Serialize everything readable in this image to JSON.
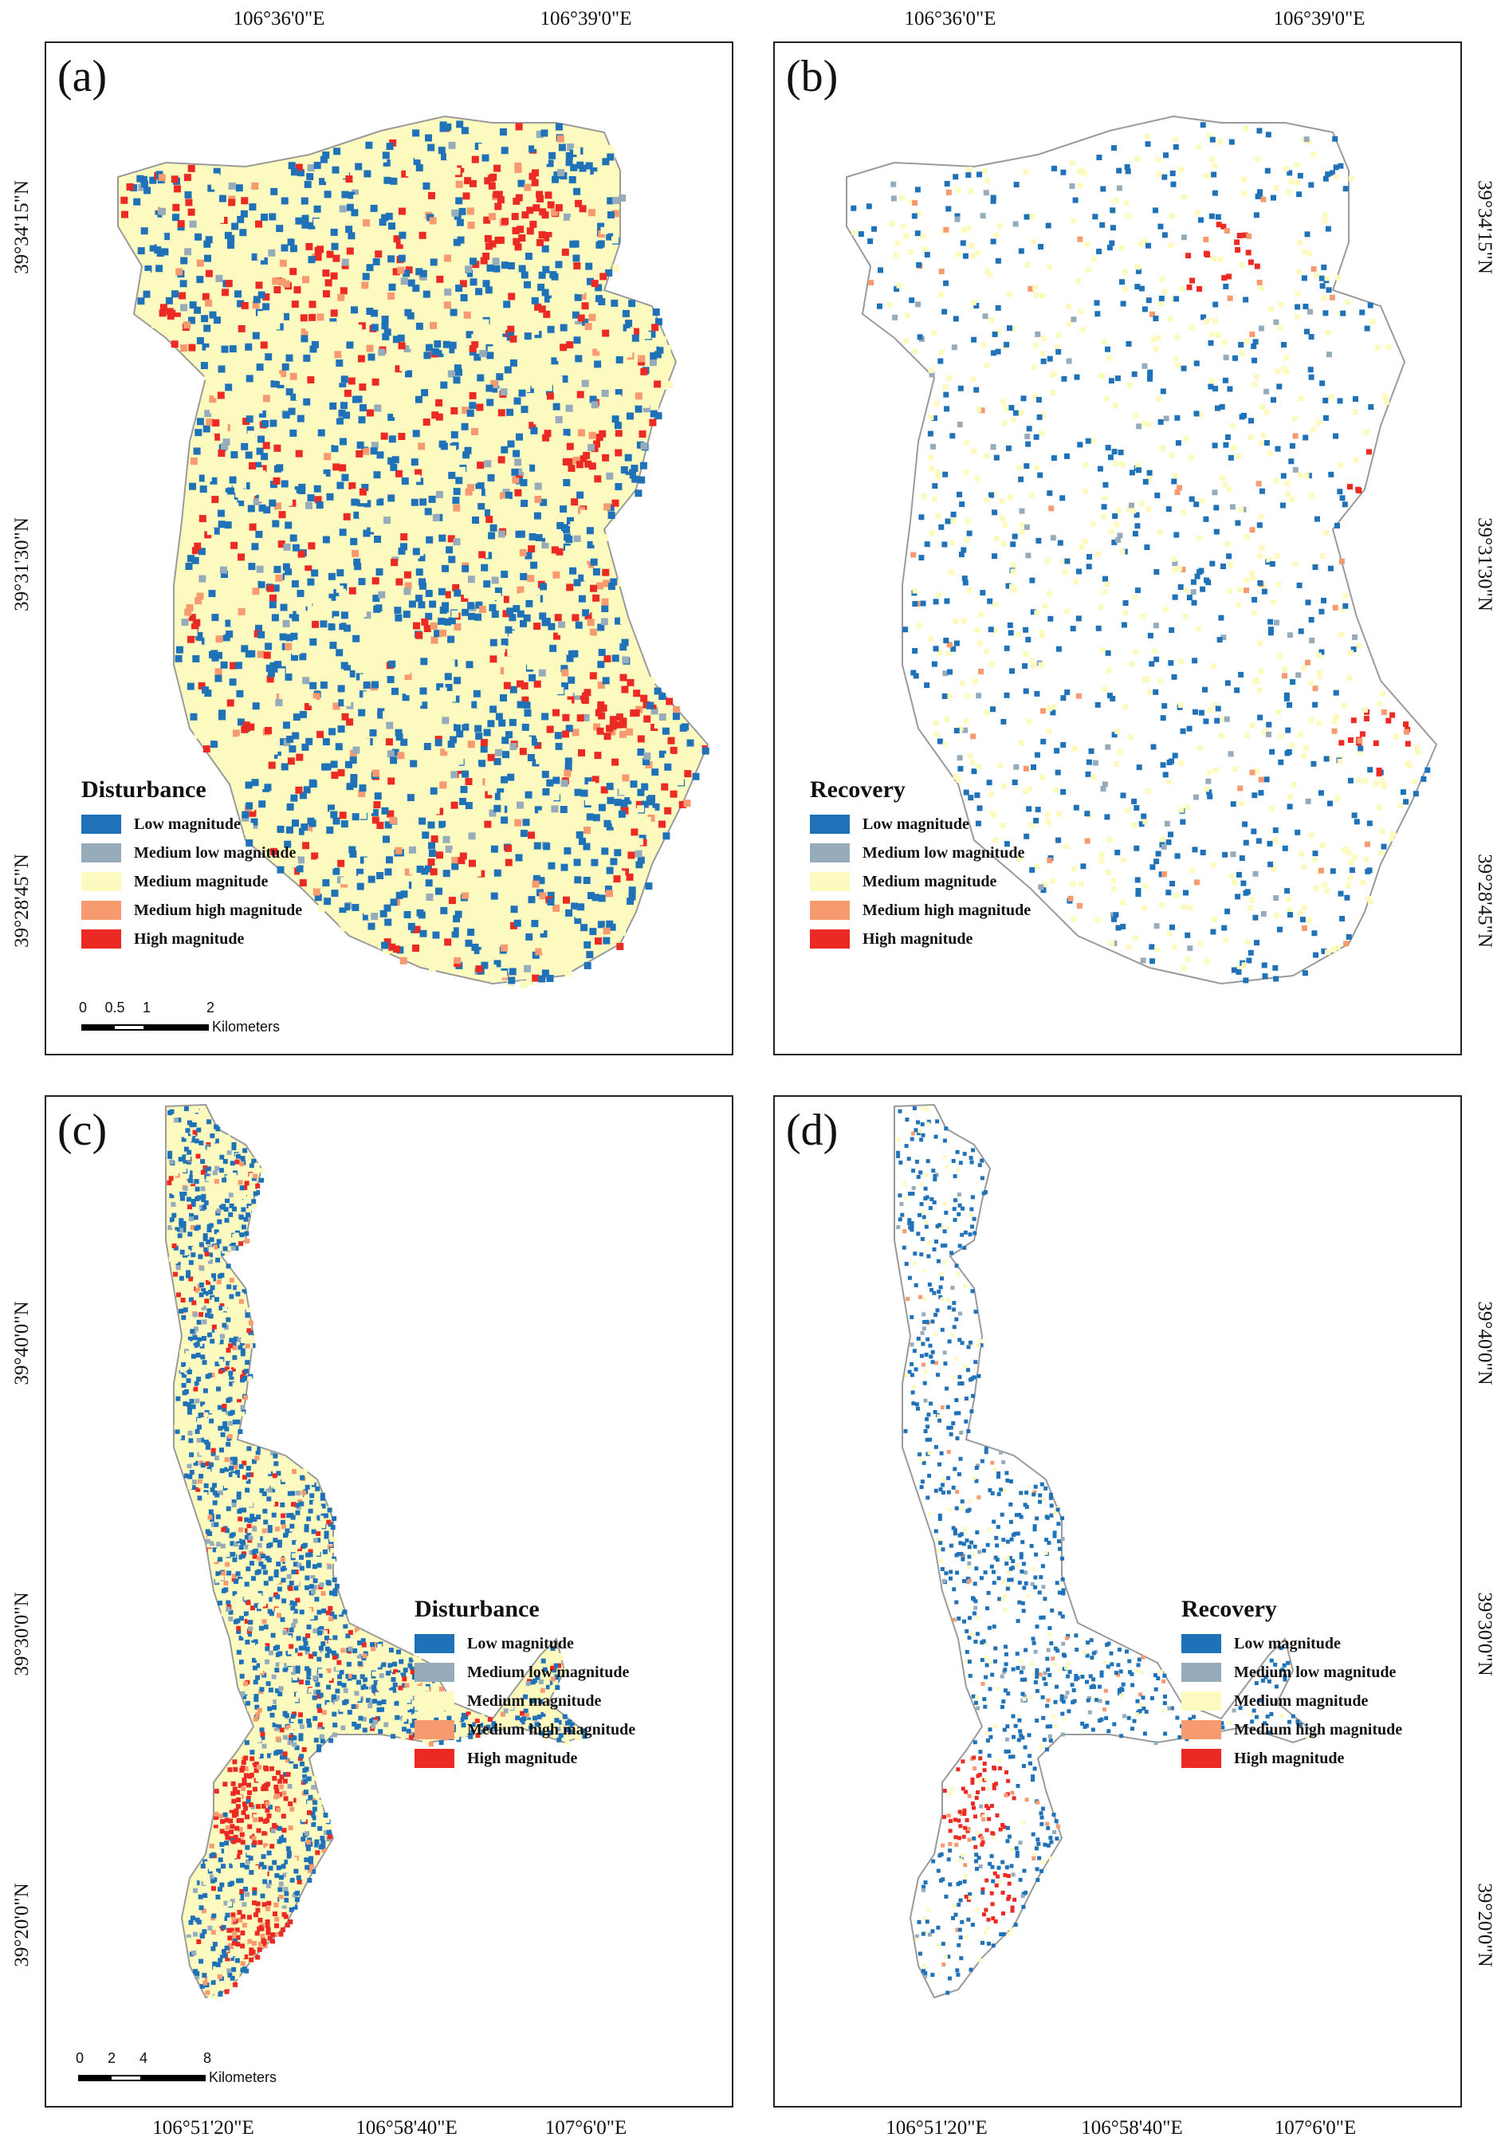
{
  "panels": {
    "a": {
      "label": "(a)",
      "legend_title": "Disturbance",
      "x_ticks": [
        "106°36'0\"E",
        "106°39'0\"E"
      ],
      "y_ticks": [
        "39°34'15\"N",
        "39°31'30\"N",
        "39°28'45\"N"
      ],
      "scale": {
        "ticks": [
          "0",
          "0.5",
          "1",
          "2"
        ],
        "unit": "Kilometers"
      }
    },
    "b": {
      "label": "(b)",
      "legend_title": "Recovery",
      "x_ticks": [
        "106°36'0\"E",
        "106°39'0\"E"
      ],
      "y_ticks": [
        "39°34'15\"N",
        "39°31'30\"N",
        "39°28'45\"N"
      ]
    },
    "c": {
      "label": "(c)",
      "legend_title": "Disturbance",
      "x_ticks": [
        "106°51'20\"E",
        "106°58'40\"E",
        "107°6'0\"E"
      ],
      "y_ticks": [
        "39°40'0\"N",
        "39°30'0\"N",
        "39°20'0\"N"
      ],
      "scale": {
        "ticks": [
          "0",
          "2",
          "4",
          "8"
        ],
        "unit": "Kilometers"
      }
    },
    "d": {
      "label": "(d)",
      "legend_title": "Recovery",
      "x_ticks": [
        "106°51'20\"E",
        "106°58'40\"E",
        "107°6'0\"E"
      ],
      "y_ticks": [
        "39°40'0\"N",
        "39°30'0\"N",
        "39°20'0\"N"
      ]
    }
  },
  "legend_items": [
    {
      "label": "Low magnitude",
      "color": "#2072b8"
    },
    {
      "label": "Medium low magnitude",
      "color": "#97acba"
    },
    {
      "label": "Medium magnitude",
      "color": "#fdfac0"
    },
    {
      "label": "Medium high magnitude",
      "color": "#f79a70"
    },
    {
      "label": "High magnitude",
      "color": "#ec2a24"
    }
  ]
}
